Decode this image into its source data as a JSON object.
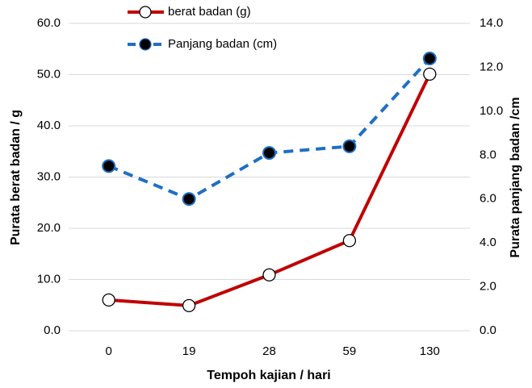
{
  "chart_data": {
    "type": "line",
    "x_label": "Tempoh kajian / hari",
    "y_label": "Purata berat badan / g",
    "y2_label": "Purata panjang badan /cm",
    "categories": [
      "0",
      "19",
      "28",
      "59",
      "130"
    ],
    "series": [
      {
        "name": "berat badan (g)",
        "color": "#c00000",
        "values": [
          6.0,
          4.9,
          10.9,
          17.6,
          50.1
        ]
      },
      {
        "name": "Panjang badan (cm)",
        "color": "#1f6fc5",
        "axis": "y2",
        "dashed": true,
        "values": [
          7.5,
          6.0,
          8.1,
          8.4,
          12.4
        ]
      }
    ],
    "ylim": [
      0,
      60
    ],
    "yticks": [
      {
        "value": 0,
        "label": "0.0"
      },
      {
        "value": 10,
        "label": "10.0"
      },
      {
        "value": 20,
        "label": "20.0"
      },
      {
        "value": 30,
        "label": "30.0"
      },
      {
        "value": 40,
        "label": "40.0"
      },
      {
        "value": 50,
        "label": "50.0"
      },
      {
        "value": 60,
        "label": "60.0"
      }
    ],
    "y2lim": [
      0,
      14
    ],
    "y2ticks": [
      {
        "value": 0,
        "label": "0.0"
      },
      {
        "value": 2,
        "label": "2.0"
      },
      {
        "value": 4,
        "label": "4.0"
      },
      {
        "value": 6,
        "label": "6.0"
      },
      {
        "value": 8,
        "label": "8.0"
      },
      {
        "value": 10,
        "label": "10.0"
      },
      {
        "value": 12,
        "label": "12.0"
      },
      {
        "value": 14,
        "label": "14.0"
      }
    ],
    "grid": true,
    "legend": "top"
  }
}
